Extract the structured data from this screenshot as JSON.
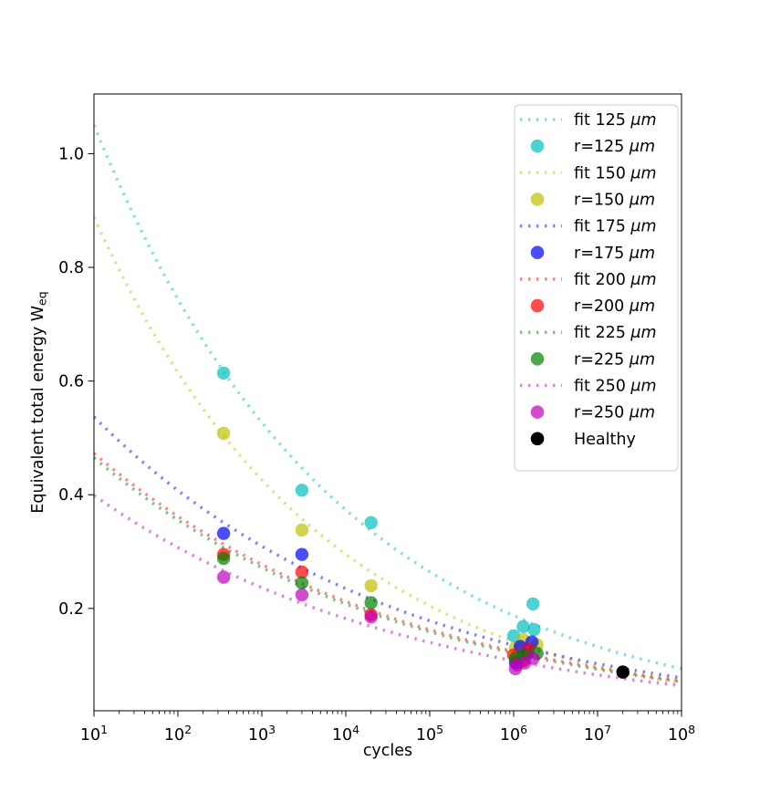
{
  "figure": {
    "xlabel": "cycles",
    "ylabel_main": "Equivalent total energy W",
    "ylabel_sub": "eq"
  },
  "chart_data": {
    "type": "scatter",
    "title": "",
    "xlabel": "cycles",
    "ylabel": "Equivalent total energy W_eq",
    "x_scale": "log",
    "y_scale": "linear",
    "x_log_range": [
      1,
      8
    ],
    "ylim": [
      0.02,
      1.105
    ],
    "x_tick_exponents": [
      1,
      2,
      3,
      4,
      5,
      6,
      7,
      8
    ],
    "y_ticks": [
      "0.2",
      "0.4",
      "0.6",
      "0.8",
      "1.0"
    ],
    "grid": false,
    "legend_position": "upper right",
    "marker_alpha": 0.7,
    "line_alpha": 0.5,
    "fit_model": "power-law through (10, w_at_10) and (1e8, w_at_1e8)",
    "series": [
      {
        "radius_um": 125,
        "fit_label": "fit 125",
        "marker_label": "r=125",
        "unit": "μm",
        "color": "#00BFBF",
        "fit": {
          "w_at_10": 1.05,
          "w_at_1e8": 0.094
        },
        "points": [
          [
            350,
            0.614
          ],
          [
            3000,
            0.408
          ],
          [
            20000,
            0.351
          ],
          [
            1000000,
            0.152
          ],
          [
            1300000,
            0.168
          ],
          [
            1750000,
            0.163
          ],
          [
            1700000,
            0.208
          ]
        ]
      },
      {
        "radius_um": 150,
        "fit_label": "fit 150",
        "marker_label": "r=150",
        "unit": "μm",
        "color": "#BFBF00",
        "fit": {
          "w_at_10": 0.888,
          "w_at_1e8": 0.068
        },
        "points": [
          [
            350,
            0.508
          ],
          [
            3000,
            0.338
          ],
          [
            20000,
            0.24
          ],
          [
            1050000,
            0.131
          ],
          [
            1300000,
            0.145
          ],
          [
            1900000,
            0.136
          ]
        ]
      },
      {
        "radius_um": 175,
        "fit_label": "fit 175",
        "marker_label": "r=175",
        "unit": "μm",
        "color": "#0000FF",
        "fit": {
          "w_at_10": 0.537,
          "w_at_1e8": 0.078
        },
        "points": [
          [
            350,
            0.332
          ],
          [
            3000,
            0.295
          ],
          [
            1050000,
            0.105
          ],
          [
            1200000,
            0.133
          ],
          [
            1450000,
            0.12
          ],
          [
            1650000,
            0.141
          ]
        ]
      },
      {
        "radius_um": 200,
        "fit_label": "fit 200",
        "marker_label": "r=200",
        "unit": "μm",
        "color": "#FF0000",
        "fit": {
          "w_at_10": 0.473,
          "w_at_1e8": 0.073
        },
        "points": [
          [
            350,
            0.295
          ],
          [
            3000,
            0.264
          ],
          [
            20000,
            0.189
          ],
          [
            1000000,
            0.118
          ],
          [
            1300000,
            0.108
          ],
          [
            1500000,
            0.128
          ]
        ]
      },
      {
        "radius_um": 225,
        "fit_label": "fit 225",
        "marker_label": "r=225",
        "unit": "μm",
        "color": "#008000",
        "fit": {
          "w_at_10": 0.465,
          "w_at_1e8": 0.071
        },
        "points": [
          [
            350,
            0.288
          ],
          [
            3000,
            0.245
          ],
          [
            20000,
            0.21
          ],
          [
            1050000,
            0.112
          ],
          [
            1300000,
            0.117
          ],
          [
            1900000,
            0.121
          ]
        ]
      },
      {
        "radius_um": 250,
        "fit_label": "fit 250",
        "marker_label": "r=250",
        "unit": "μm",
        "color": "#BF00BF",
        "fit": {
          "w_at_10": 0.399,
          "w_at_1e8": 0.064
        },
        "points": [
          [
            350,
            0.255
          ],
          [
            3000,
            0.224
          ],
          [
            20000,
            0.185
          ],
          [
            1050000,
            0.094
          ],
          [
            1100000,
            0.101
          ],
          [
            1350000,
            0.104
          ],
          [
            1700000,
            0.112
          ]
        ]
      }
    ],
    "healthy": {
      "label": "Healthy",
      "color": "#000000",
      "cycles": 20000000,
      "w_eq": 0.088
    }
  }
}
